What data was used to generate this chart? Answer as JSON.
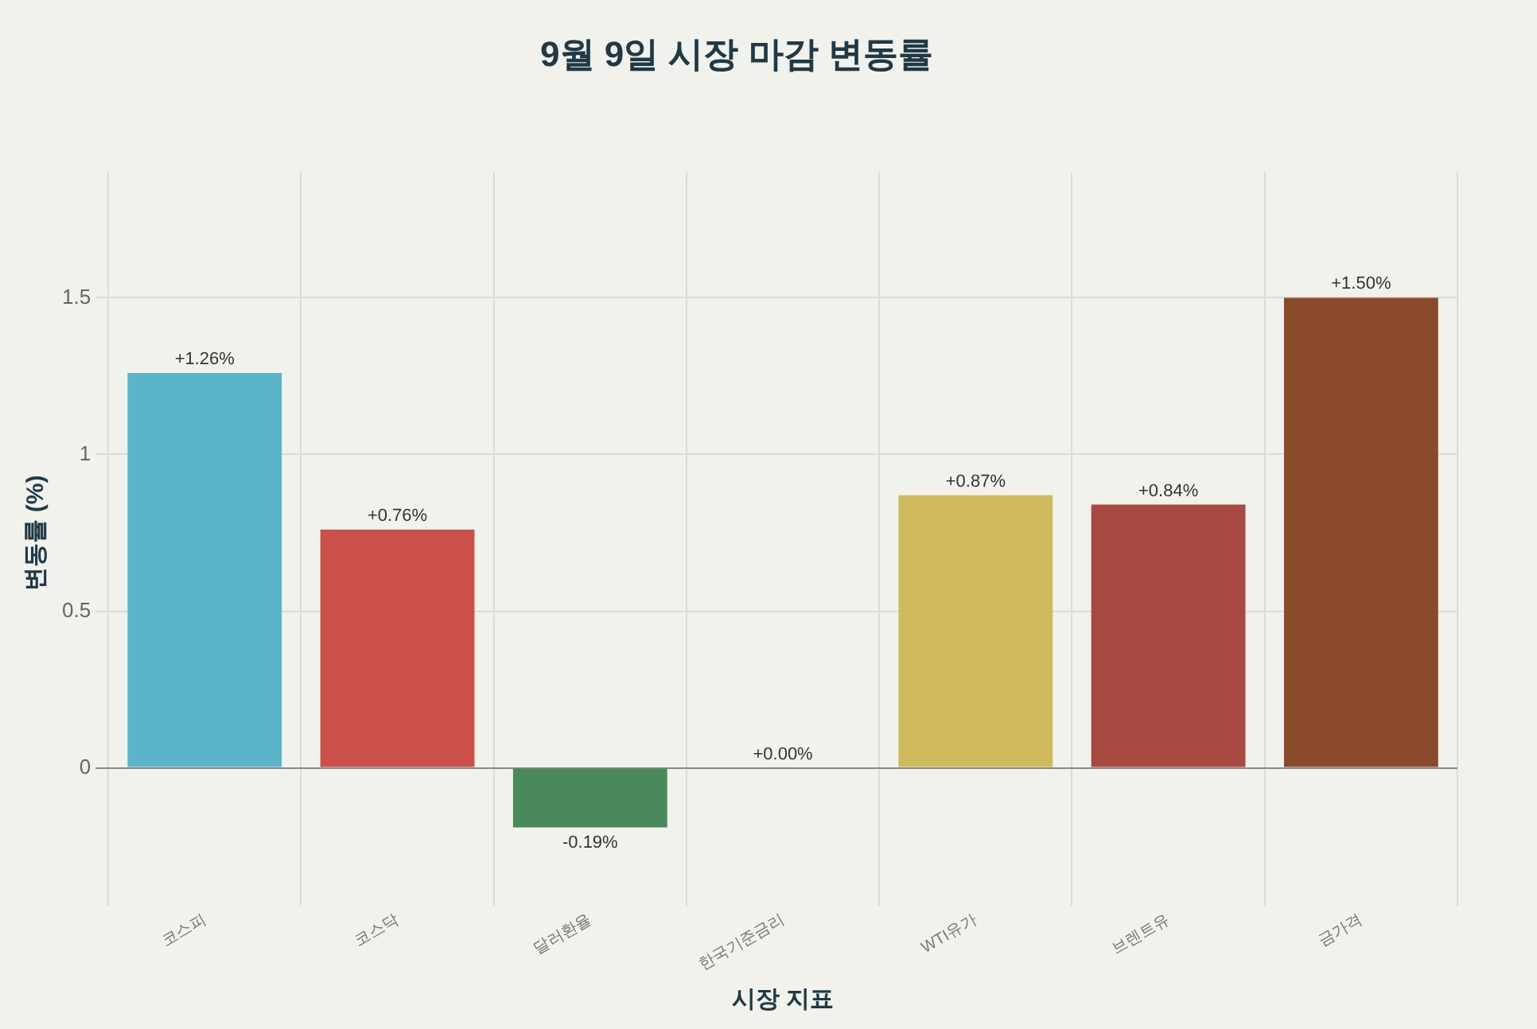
{
  "chart_data": {
    "type": "bar",
    "title": "9월 9일 시장 마감 변동률",
    "xlabel": "시장 지표",
    "ylabel": "변동률 (%)",
    "categories": [
      "코스피",
      "코스닥",
      "달러환율",
      "한국기준금리",
      "WTI유가",
      "브렌트유",
      "금가격"
    ],
    "values": [
      1.26,
      0.76,
      -0.19,
      0,
      0.87,
      0.84,
      1.5
    ],
    "colors": [
      "#5ab5ca",
      "#cc504a",
      "#4a8a5a",
      "#888888",
      "#cfba5e",
      "#a84a42",
      "#8b4a2c"
    ],
    "value_labels": [
      "+1.26%",
      "+0.76%",
      "-0.19%",
      "+0.00%",
      "+0.87%",
      "+0.84%",
      "+1.50%"
    ],
    "ylim": [
      -0.4,
      1.9
    ],
    "yticks": [
      0,
      0.5,
      1,
      1.5
    ],
    "grid": true
  }
}
